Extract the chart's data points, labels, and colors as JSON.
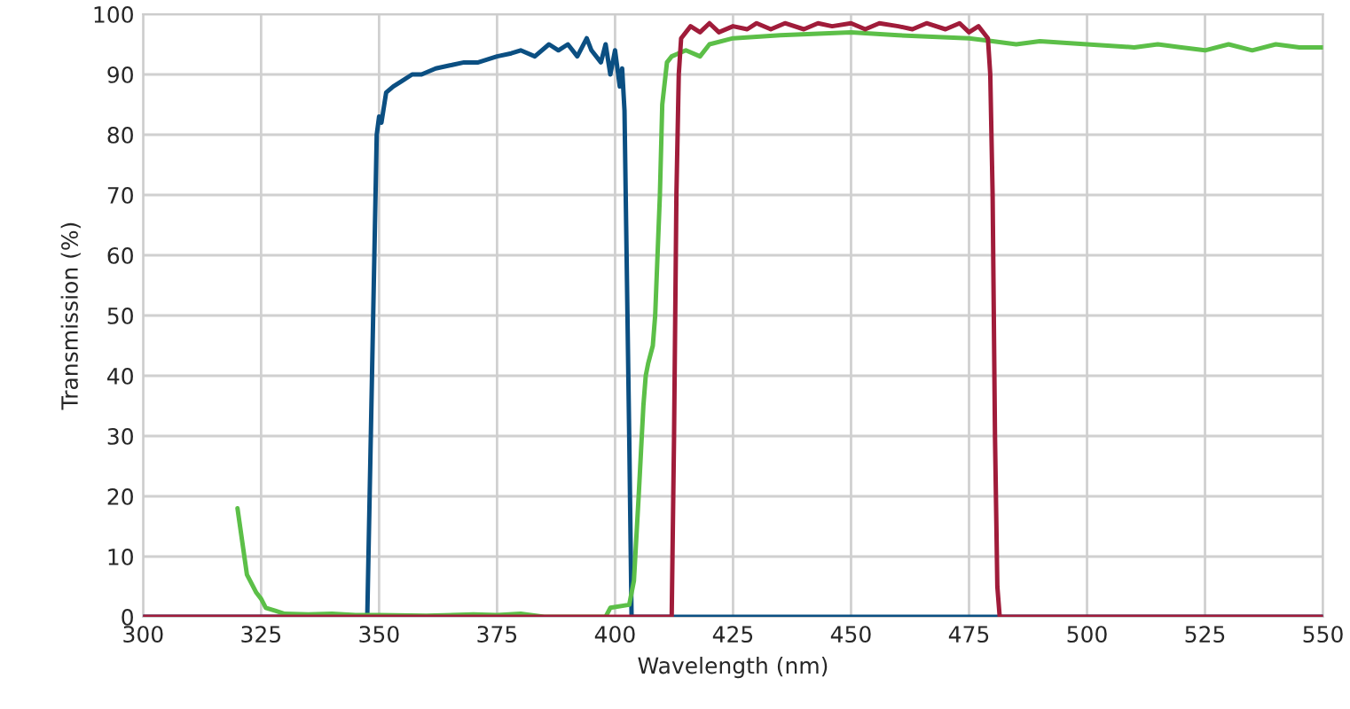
{
  "chart_data": {
    "type": "line",
    "xlabel": "Wavelength (nm)",
    "ylabel": "Transmission (%)",
    "xlim": [
      300,
      550
    ],
    "ylim": [
      0,
      100
    ],
    "xticks": [
      300,
      325,
      350,
      375,
      400,
      425,
      450,
      475,
      500,
      525,
      550
    ],
    "yticks": [
      0,
      10,
      20,
      30,
      40,
      50,
      60,
      70,
      80,
      90,
      100
    ],
    "grid": true,
    "marker": "none",
    "line_style": "solid",
    "series": [
      {
        "color": "#0b4f82",
        "x": [
          300,
          347.5,
          348.5,
          349.5,
          350,
          350.5,
          351.5,
          353,
          355,
          357,
          359,
          362,
          365,
          368,
          371,
          375,
          378,
          380,
          383,
          386,
          388,
          390,
          392,
          394,
          395,
          397,
          398,
          399,
          400,
          401,
          401.5,
          402,
          403,
          403.5,
          550
        ],
        "values": [
          0,
          0,
          40,
          80,
          83,
          82,
          87,
          88,
          89,
          90,
          90,
          91,
          91.5,
          92,
          92,
          93,
          93.5,
          94,
          93,
          95,
          94,
          95,
          93,
          96,
          94,
          92,
          95,
          90,
          94,
          88,
          91,
          84,
          30,
          0,
          0
        ]
      },
      {
        "color": "#5cbf48",
        "x": [
          320,
          322,
          324,
          325,
          326,
          328,
          330,
          335,
          340,
          345,
          350,
          360,
          370,
          375,
          380,
          385,
          398,
          399,
          403,
          404,
          405,
          406,
          406.5,
          407,
          408,
          408.5,
          409.5,
          410,
          411,
          412,
          415,
          418,
          420,
          425,
          435,
          450,
          460,
          475,
          480,
          485,
          490,
          500,
          510,
          515,
          520,
          525,
          530,
          535,
          540,
          545,
          550
        ],
        "values": [
          18,
          7,
          4,
          3,
          1.5,
          1,
          0.5,
          0.4,
          0.5,
          0.3,
          0.3,
          0.2,
          0.4,
          0.3,
          0.5,
          0,
          0,
          1.5,
          2,
          6,
          20,
          35,
          40,
          42,
          45,
          50,
          70,
          85,
          92,
          93,
          94,
          93,
          95,
          96,
          96.5,
          97,
          96.5,
          96,
          95.5,
          95,
          95.5,
          95,
          94.5,
          95,
          94.5,
          94,
          95,
          94,
          95,
          94.5,
          94.5
        ]
      },
      {
        "color": "#a01c3a",
        "x": [
          300,
          412,
          412.5,
          413,
          413.5,
          414,
          416,
          418,
          420,
          422,
          425,
          428,
          430,
          433,
          436,
          440,
          443,
          446,
          450,
          453,
          456,
          460,
          463,
          466,
          470,
          473,
          475,
          477,
          479,
          479.5,
          480,
          480.5,
          481,
          481.5,
          550
        ],
        "values": [
          0,
          0,
          30,
          70,
          90,
          96,
          98,
          97,
          98.5,
          97,
          98,
          97.5,
          98.5,
          97.5,
          98.5,
          97.5,
          98.5,
          98,
          98.5,
          97.5,
          98.5,
          98,
          97.5,
          98.5,
          97.5,
          98.5,
          97,
          98,
          96,
          90,
          70,
          30,
          5,
          0,
          0
        ]
      }
    ]
  }
}
